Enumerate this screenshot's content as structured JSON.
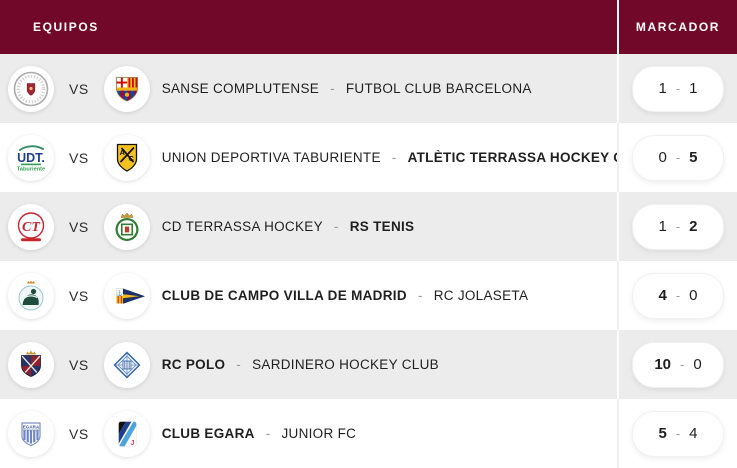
{
  "header": {
    "equipos": "EQUIPOS",
    "marcador": "MARCADOR"
  },
  "vs_label": "VS",
  "separator": "-",
  "colors": {
    "header_bg": "#71082a",
    "header_text": "#ffffff",
    "row_alt_bg": "#ececec",
    "row_bg": "#ffffff",
    "pill_bg": "#ffffff",
    "name_text": "#1f1f1f",
    "dash_text": "#999999"
  },
  "matches": [
    {
      "home": {
        "name": "SANSE COMPLUTENSE",
        "logo": "sanse-complutense"
      },
      "away": {
        "name": "FUTBOL CLUB BARCELONA",
        "logo": "fc-barcelona"
      },
      "score": {
        "home": "1",
        "away": "1"
      },
      "winner": "draw"
    },
    {
      "home": {
        "name": "UNION DEPORTIVA TABURIENTE",
        "logo": "ud-taburiente"
      },
      "away": {
        "name": "ATLÈTIC TERRASSA HOCKEY CLUB",
        "logo": "atletic-terrassa"
      },
      "score": {
        "home": "0",
        "away": "5"
      },
      "winner": "away"
    },
    {
      "home": {
        "name": "CD TERRASSA HOCKEY",
        "logo": "cd-terrassa"
      },
      "away": {
        "name": "RS TENIS",
        "logo": "rs-tenis"
      },
      "score": {
        "home": "1",
        "away": "2"
      },
      "winner": "away"
    },
    {
      "home": {
        "name": "CLUB DE CAMPO VILLA DE MADRID",
        "logo": "club-de-campo"
      },
      "away": {
        "name": "RC JOLASETA",
        "logo": "rc-jolaseta"
      },
      "score": {
        "home": "4",
        "away": "0"
      },
      "winner": "home"
    },
    {
      "home": {
        "name": "RC POLO",
        "logo": "rc-polo"
      },
      "away": {
        "name": "SARDINERO HOCKEY CLUB",
        "logo": "sardinero"
      },
      "score": {
        "home": "10",
        "away": "0"
      },
      "winner": "home"
    },
    {
      "home": {
        "name": "CLUB EGARA",
        "logo": "club-egara"
      },
      "away": {
        "name": "JUNIOR FC",
        "logo": "junior-fc"
      },
      "score": {
        "home": "5",
        "away": "4"
      },
      "winner": "home"
    }
  ]
}
